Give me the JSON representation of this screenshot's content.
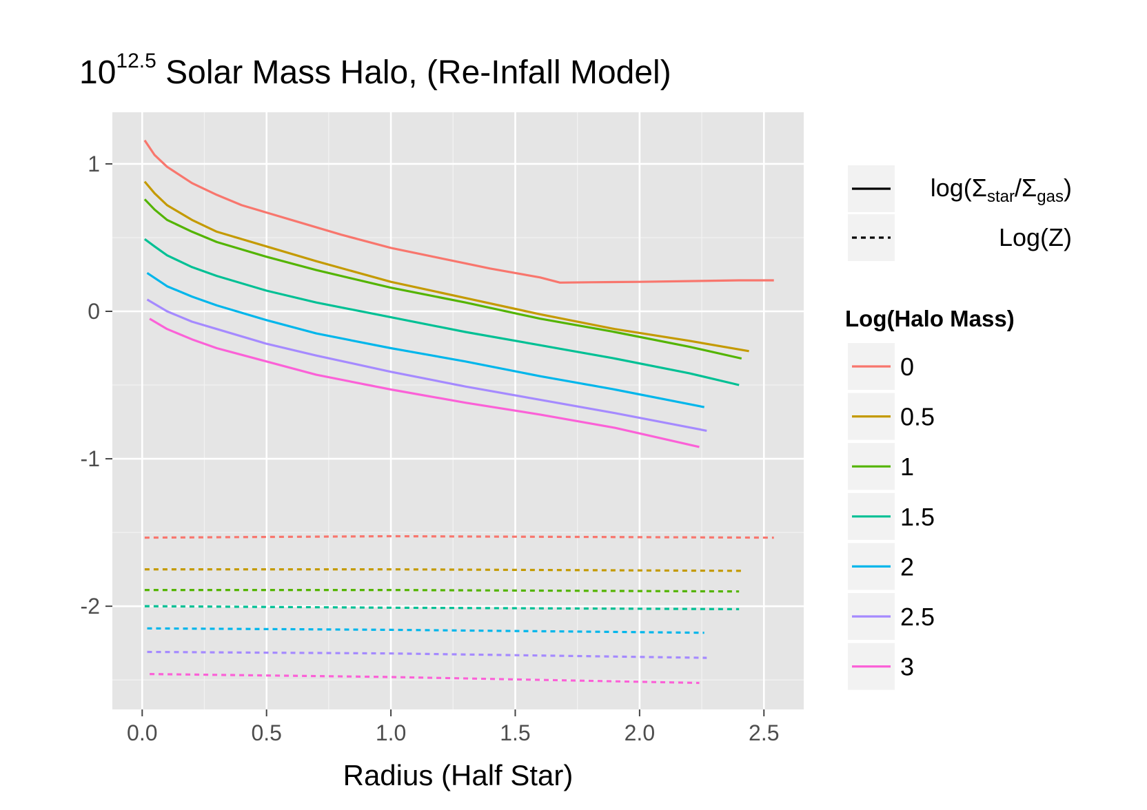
{
  "chart_data": {
    "type": "line",
    "title": {
      "base": "10",
      "exponent": "12.5",
      "rest": "Solar Mass Halo, (Re-Infall Model)"
    },
    "xlabel": "Radius (Half Star)",
    "ylabel": "",
    "xlim": [
      -0.12,
      2.66
    ],
    "ylim": [
      -2.7,
      1.35
    ],
    "xticks": [
      0.0,
      0.5,
      1.0,
      1.5,
      2.0,
      2.5
    ],
    "xtick_labels": [
      "0.0",
      "0.5",
      "1.0",
      "1.5",
      "2.0",
      "2.5"
    ],
    "yticks": [
      1,
      0,
      -1,
      -2
    ],
    "ytick_labels": [
      "1",
      "0",
      "-1",
      "-2"
    ],
    "grid": true,
    "background": "#e5e5e5",
    "legend_placement": "right",
    "linetype_legend": {
      "entries": [
        {
          "key": "solid",
          "label_prefix": "log(",
          "sym": "Σ",
          "sub1": "star",
          "sep": "/",
          "sub2": "gas",
          "label_suffix": ")"
        },
        {
          "key": "dashed",
          "label": "Log(Z)"
        }
      ]
    },
    "color_legend": {
      "title": "Log(Halo Mass)",
      "labels": [
        "0",
        "0.5",
        "1",
        "1.5",
        "2",
        "2.5",
        "3"
      ]
    },
    "series": [
      {
        "name": "0",
        "color": "#F8766D",
        "solid": {
          "x": [
            0.01,
            0.05,
            0.1,
            0.2,
            0.3,
            0.4,
            0.5,
            0.6,
            0.8,
            1.0,
            1.2,
            1.4,
            1.6,
            1.68,
            1.8,
            2.0,
            2.2,
            2.4,
            2.54
          ],
          "y": [
            1.16,
            1.06,
            0.98,
            0.87,
            0.79,
            0.72,
            0.67,
            0.62,
            0.52,
            0.43,
            0.36,
            0.29,
            0.23,
            0.195,
            0.197,
            0.2,
            0.205,
            0.21,
            0.21
          ]
        },
        "dashed": {
          "x": [
            0.01,
            1.0,
            2.54
          ],
          "y": [
            -1.535,
            -1.525,
            -1.535
          ]
        }
      },
      {
        "name": "0.5",
        "color": "#C49A00",
        "solid": {
          "x": [
            0.01,
            0.05,
            0.1,
            0.2,
            0.3,
            0.5,
            0.7,
            1.0,
            1.3,
            1.6,
            1.9,
            2.2,
            2.44
          ],
          "y": [
            0.88,
            0.8,
            0.72,
            0.62,
            0.54,
            0.44,
            0.34,
            0.2,
            0.09,
            -0.02,
            -0.12,
            -0.2,
            -0.27
          ]
        },
        "dashed": {
          "x": [
            0.01,
            1.0,
            2.42
          ],
          "y": [
            -1.75,
            -1.75,
            -1.76
          ]
        }
      },
      {
        "name": "1",
        "color": "#53B400",
        "solid": {
          "x": [
            0.01,
            0.05,
            0.1,
            0.2,
            0.3,
            0.5,
            0.7,
            1.0,
            1.3,
            1.6,
            1.9,
            2.2,
            2.41
          ],
          "y": [
            0.76,
            0.69,
            0.62,
            0.54,
            0.47,
            0.37,
            0.28,
            0.16,
            0.06,
            -0.05,
            -0.14,
            -0.24,
            -0.32
          ]
        },
        "dashed": {
          "x": [
            0.01,
            1.0,
            2.4
          ],
          "y": [
            -1.89,
            -1.89,
            -1.9
          ]
        }
      },
      {
        "name": "1.5",
        "color": "#00C094",
        "solid": {
          "x": [
            0.01,
            0.05,
            0.1,
            0.2,
            0.3,
            0.5,
            0.7,
            1.0,
            1.3,
            1.6,
            1.9,
            2.2,
            2.4
          ],
          "y": [
            0.49,
            0.44,
            0.38,
            0.3,
            0.24,
            0.14,
            0.06,
            -0.04,
            -0.14,
            -0.23,
            -0.32,
            -0.42,
            -0.5
          ]
        },
        "dashed": {
          "x": [
            0.01,
            1.0,
            2.4
          ],
          "y": [
            -2.0,
            -2.01,
            -2.02
          ]
        }
      },
      {
        "name": "2",
        "color": "#00B6EB",
        "solid": {
          "x": [
            0.02,
            0.1,
            0.2,
            0.3,
            0.5,
            0.7,
            1.0,
            1.3,
            1.6,
            1.9,
            2.26
          ],
          "y": [
            0.26,
            0.17,
            0.1,
            0.04,
            -0.06,
            -0.15,
            -0.25,
            -0.34,
            -0.44,
            -0.53,
            -0.65
          ]
        },
        "dashed": {
          "x": [
            0.02,
            1.0,
            2.26
          ],
          "y": [
            -2.15,
            -2.16,
            -2.18
          ]
        }
      },
      {
        "name": "2.5",
        "color": "#A58AFF",
        "solid": {
          "x": [
            0.02,
            0.1,
            0.2,
            0.3,
            0.5,
            0.7,
            1.0,
            1.3,
            1.6,
            1.9,
            2.27
          ],
          "y": [
            0.08,
            0.0,
            -0.07,
            -0.12,
            -0.22,
            -0.3,
            -0.41,
            -0.51,
            -0.6,
            -0.69,
            -0.81
          ]
        },
        "dashed": {
          "x": [
            0.02,
            1.0,
            2.27
          ],
          "y": [
            -2.31,
            -2.32,
            -2.35
          ]
        }
      },
      {
        "name": "3",
        "color": "#FB61D7",
        "solid": {
          "x": [
            0.03,
            0.1,
            0.2,
            0.3,
            0.5,
            0.7,
            1.0,
            1.3,
            1.6,
            1.9,
            2.24
          ],
          "y": [
            -0.05,
            -0.12,
            -0.19,
            -0.25,
            -0.34,
            -0.43,
            -0.53,
            -0.62,
            -0.7,
            -0.79,
            -0.92
          ]
        },
        "dashed": {
          "x": [
            0.03,
            1.0,
            2.24
          ],
          "y": [
            -2.46,
            -2.48,
            -2.52
          ]
        }
      }
    ]
  }
}
